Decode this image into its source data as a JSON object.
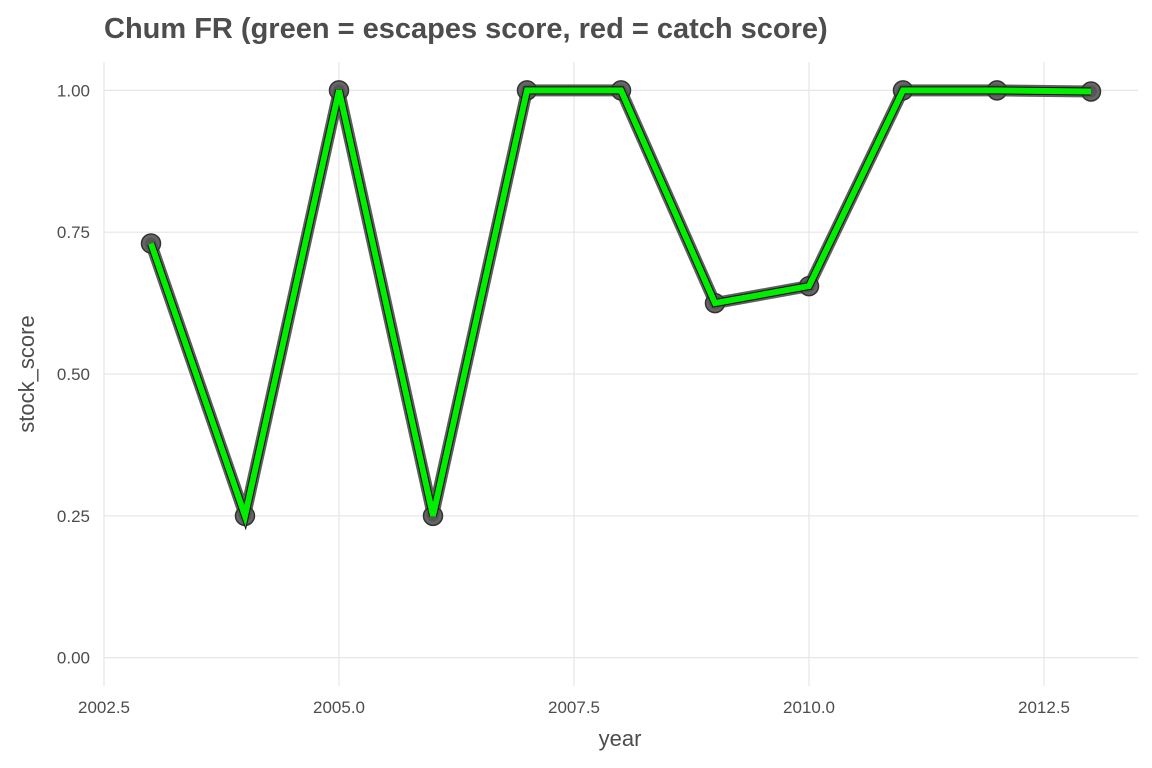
{
  "chart_data": {
    "type": "line",
    "title": "Chum FR (green = escapes score, red = catch score)",
    "xlabel": "year",
    "ylabel": "stock_score",
    "xlim": [
      2002.5,
      2013.5
    ],
    "ylim": [
      -0.05,
      1.05
    ],
    "x_ticks": [
      2002.5,
      2005.0,
      2007.5,
      2010.0,
      2012.5
    ],
    "x_tick_labels": [
      "2002.5",
      "2005.0",
      "2007.5",
      "2010.0",
      "2012.5"
    ],
    "y_ticks": [
      0,
      0.25,
      0.5,
      0.75,
      1.0
    ],
    "y_tick_labels": [
      "0.00",
      "0.25",
      "0.50",
      "0.75",
      "1.00"
    ],
    "grid": true,
    "legend": "none",
    "series": [
      {
        "color": "#00ee00",
        "outline_color": "#555555",
        "point_color": "#555555",
        "x": [
          2003,
          2004,
          2005,
          2006,
          2007,
          2008,
          2009,
          2010,
          2011,
          2012,
          2013
        ],
        "y": [
          0.73,
          0.25,
          1.0,
          0.25,
          1.0,
          1.0,
          0.625,
          0.655,
          1.0,
          1.0,
          0.998
        ]
      }
    ]
  }
}
